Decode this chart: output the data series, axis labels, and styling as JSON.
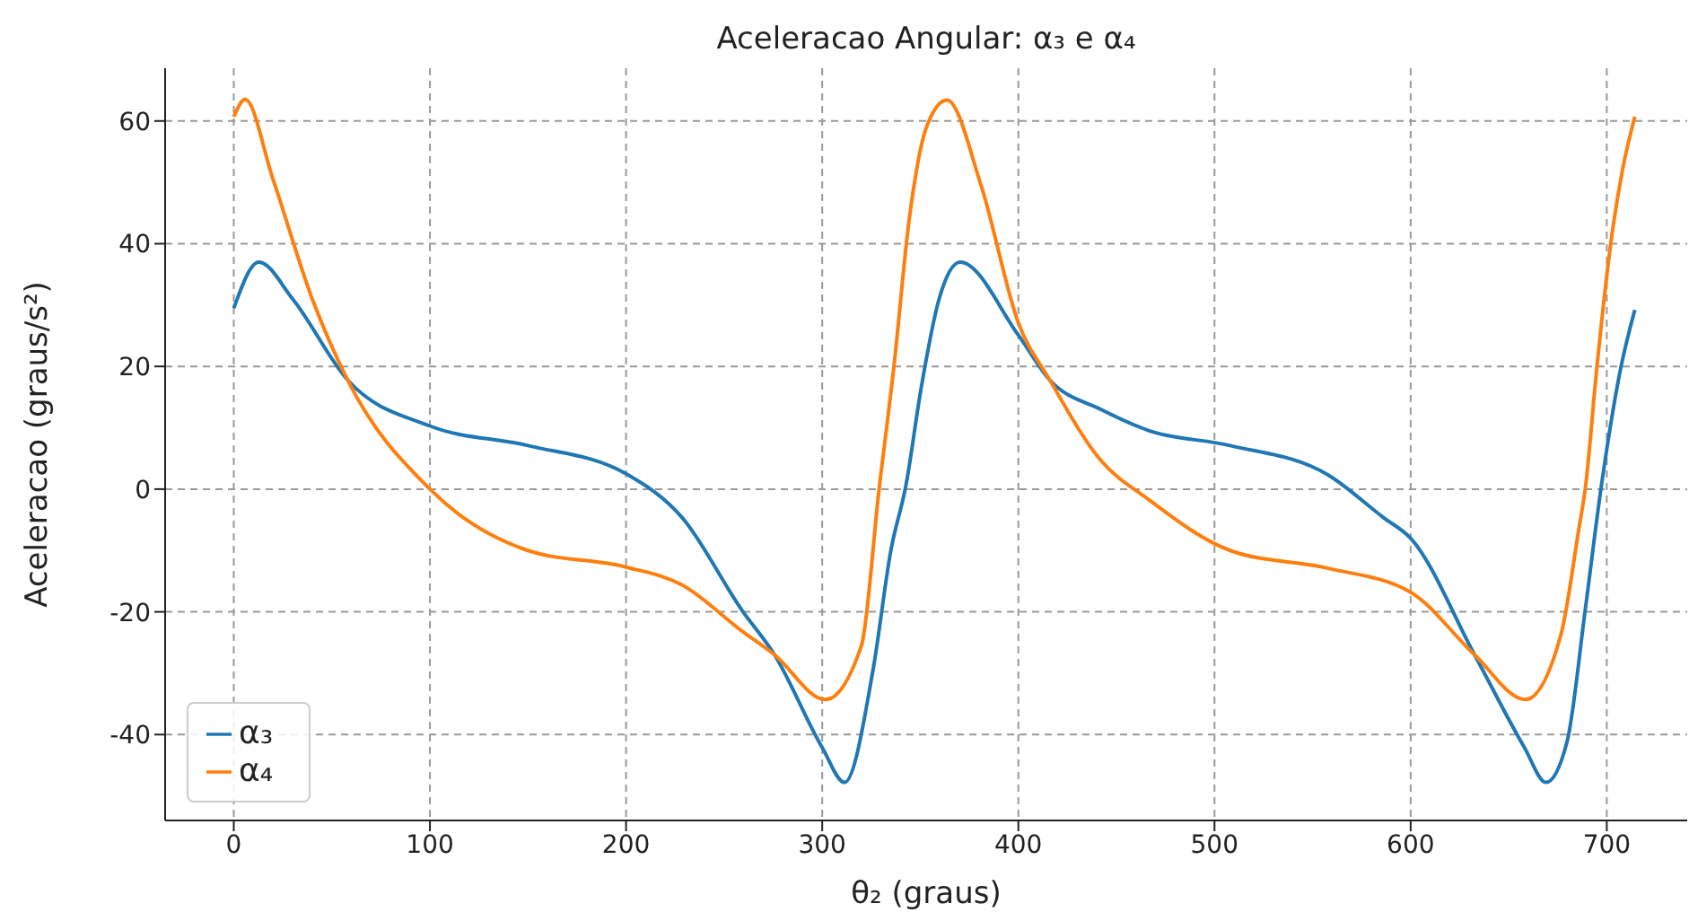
{
  "chart_data": {
    "type": "line",
    "title": "Aceleracao Angular: α₃ e α₄",
    "xlabel": "θ₂ (graus)",
    "ylabel": "Aceleracao (graus/s²)",
    "series": [
      {
        "name": "α₃",
        "color": "#1f77b4",
        "x": [
          0,
          12.8,
          30,
          58,
          100,
          150,
          200,
          228.5,
          259,
          275.7,
          300,
          311.4,
          326,
          335,
          342.8,
          350.4,
          359.6,
          370.3,
          400,
          416,
          442,
          466,
          508,
          558,
          586,
          600,
          632.6,
          658,
          669,
          679.8,
          689,
          697,
          707.3,
          714.3
        ],
        "values": [
          29.5,
          37,
          31,
          17.8,
          10.3,
          7.1,
          2.5,
          -4.6,
          -19.7,
          -27,
          -42.1,
          -47.8,
          -29.3,
          -10,
          0.8,
          16.4,
          31,
          37,
          25.1,
          17.8,
          13,
          9.6,
          7.1,
          2.3,
          -4.6,
          -8,
          -27,
          -42.1,
          -47.8,
          -41.1,
          -19.7,
          0,
          20,
          29.2
        ]
      },
      {
        "name": "α₄",
        "color": "#ff7f0e",
        "x": [
          0,
          5.8,
          20,
          40,
          58,
          100,
          150,
          200,
          228.5,
          259,
          275.7,
          301.6,
          320,
          329,
          336.7,
          344.3,
          353.5,
          363.6,
          381,
          400,
          416,
          442,
          466,
          508,
          558,
          600,
          632.6,
          658.5,
          676.7,
          686,
          689,
          695,
          702,
          708,
          714.3
        ],
        "values": [
          60.7,
          63.5,
          50.5,
          31,
          17.8,
          0,
          -10,
          -12.7,
          -15.6,
          -23.1,
          -27,
          -34.3,
          -25.5,
          0,
          20.4,
          43.8,
          59.3,
          63.4,
          49.5,
          27.1,
          17.8,
          4.7,
          -1.6,
          -10,
          -12.9,
          -16.8,
          -27,
          -34.3,
          -23.6,
          -6,
          0,
          20,
          40,
          52,
          60.7
        ]
      }
    ],
    "xlim": [
      -35,
      741
    ],
    "xticks": [
      0,
      100,
      200,
      300,
      400,
      500,
      600,
      700
    ],
    "ylim": [
      -54,
      68.6
    ],
    "yticks": [
      -40,
      -20,
      0,
      20,
      40,
      60
    ],
    "grid": true,
    "legend": "bottom left",
    "line_style": "solid",
    "marker": "none"
  }
}
